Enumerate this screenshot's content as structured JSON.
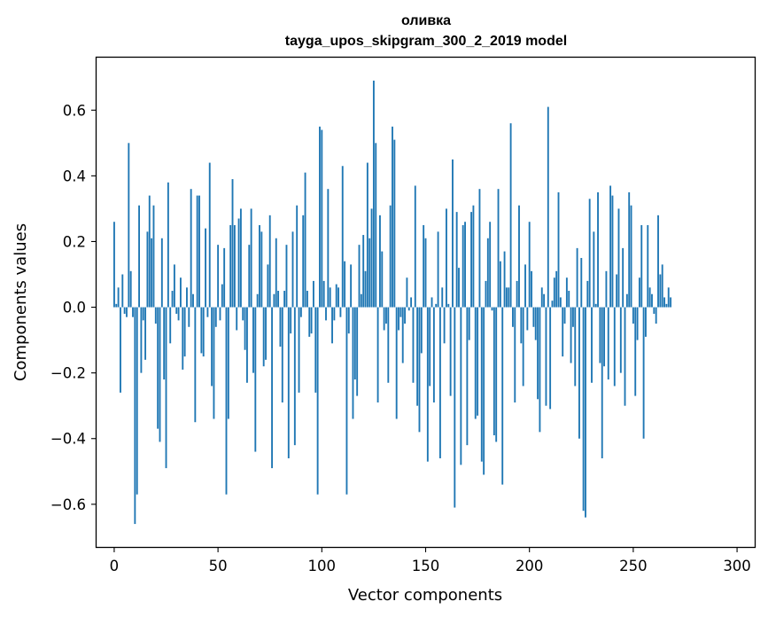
{
  "chart_data": {
    "type": "bar",
    "title": "оливка",
    "subtitle": "tayga_upos_skipgram_300_2_2019 model",
    "xlabel": "Vector components",
    "ylabel": "Components values",
    "xlim": [
      -8.5,
      308.5
    ],
    "ylim": [
      -0.73,
      0.76
    ],
    "xticks": [
      0,
      50,
      100,
      150,
      200,
      250,
      300
    ],
    "xtick_labels": [
      "0",
      "50",
      "100",
      "150",
      "200",
      "250",
      "300"
    ],
    "yticks": [
      -0.6,
      -0.4,
      -0.2,
      0.0,
      0.2,
      0.4,
      0.6
    ],
    "ytick_labels": [
      "−0.6",
      "−0.4",
      "−0.2",
      "0.0",
      "0.2",
      "0.4",
      "0.6"
    ],
    "bar_color": "#1f77b4",
    "grid": false,
    "legend": "none",
    "values": [
      0.26,
      0.01,
      0.06,
      -0.26,
      0.1,
      -0.02,
      -0.03,
      0.5,
      0.11,
      -0.03,
      -0.66,
      -0.57,
      0.31,
      -0.2,
      -0.04,
      -0.16,
      0.23,
      0.34,
      0.21,
      0.31,
      -0.05,
      -0.37,
      -0.41,
      0.21,
      -0.22,
      -0.49,
      0.38,
      -0.11,
      0.05,
      0.13,
      -0.02,
      -0.04,
      0.09,
      -0.19,
      -0.15,
      0.06,
      -0.06,
      0.36,
      0.04,
      -0.35,
      0.34,
      0.34,
      -0.14,
      -0.15,
      0.24,
      -0.03,
      0.44,
      -0.24,
      -0.34,
      -0.06,
      0.19,
      -0.04,
      0.07,
      0.18,
      -0.57,
      -0.34,
      0.25,
      0.39,
      0.25,
      -0.07,
      0.27,
      0.3,
      -0.04,
      -0.13,
      -0.23,
      0.19,
      0.3,
      -0.2,
      -0.44,
      0.04,
      0.25,
      0.23,
      -0.18,
      -0.16,
      0.13,
      0.28,
      -0.49,
      0.04,
      0.21,
      0.05,
      -0.12,
      -0.29,
      0.05,
      0.19,
      -0.46,
      -0.08,
      0.23,
      -0.42,
      0.31,
      -0.26,
      -0.03,
      0.28,
      0.41,
      0.05,
      -0.09,
      -0.08,
      0.08,
      -0.26,
      -0.57,
      0.55,
      0.54,
      0.08,
      -0.04,
      0.36,
      0.06,
      -0.11,
      -0.04,
      0.07,
      0.06,
      -0.03,
      0.43,
      0.14,
      -0.57,
      -0.08,
      0.13,
      -0.34,
      -0.22,
      -0.27,
      0.19,
      0.04,
      0.22,
      0.11,
      0.44,
      0.21,
      0.3,
      0.69,
      0.5,
      -0.29,
      0.28,
      0.17,
      -0.07,
      -0.05,
      -0.23,
      0.31,
      0.55,
      0.51,
      -0.34,
      -0.07,
      -0.03,
      -0.17,
      -0.05,
      0.09,
      -0.01,
      0.03,
      -0.23,
      0.37,
      -0.3,
      -0.38,
      -0.14,
      0.25,
      0.21,
      -0.47,
      -0.24,
      0.03,
      -0.29,
      0.01,
      0.23,
      -0.46,
      0.06,
      -0.11,
      0.3,
      0.01,
      -0.27,
      0.45,
      -0.61,
      0.29,
      0.12,
      -0.48,
      0.25,
      0.26,
      -0.42,
      -0.1,
      0.29,
      0.31,
      -0.34,
      -0.33,
      0.36,
      -0.47,
      -0.51,
      0.08,
      0.21,
      0.26,
      -0.01,
      -0.39,
      -0.41,
      0.36,
      0.14,
      -0.54,
      0.17,
      0.06,
      0.06,
      0.56,
      -0.06,
      -0.29,
      0.08,
      0.31,
      -0.11,
      -0.24,
      0.13,
      -0.07,
      0.26,
      0.11,
      -0.06,
      -0.1,
      -0.28,
      -0.38,
      0.06,
      0.04,
      -0.3,
      0.61,
      -0.31,
      0.02,
      0.09,
      0.11,
      0.35,
      0.03,
      -0.15,
      -0.05,
      0.09,
      0.05,
      -0.17,
      -0.06,
      -0.24,
      0.18,
      -0.4,
      0.15,
      -0.62,
      -0.64,
      0.08,
      0.33,
      -0.23,
      0.23,
      0.01,
      0.35,
      -0.17,
      -0.46,
      -0.18,
      0.11,
      -0.22,
      0.37,
      0.34,
      -0.24,
      0.1,
      0.3,
      -0.2,
      0.18,
      -0.3,
      0.04,
      0.35,
      0.31,
      -0.05,
      -0.27,
      -0.1,
      0.09,
      0.25,
      -0.4,
      -0.09,
      0.25,
      0.06,
      0.04,
      -0.02,
      -0.05,
      0.28,
      0.1,
      0.13,
      0.03,
      0.01,
      0.06,
      0.03
    ],
    "x_start": 0
  }
}
